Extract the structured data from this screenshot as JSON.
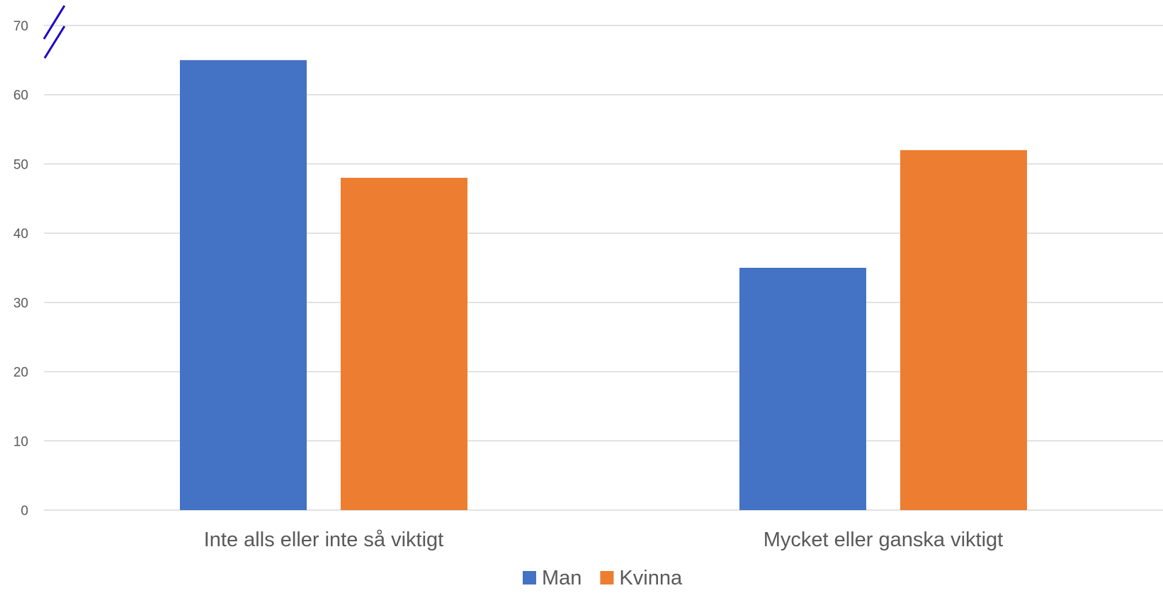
{
  "chart_data": {
    "type": "bar",
    "categories": [
      "Inte alls eller inte så viktigt",
      "Mycket eller ganska viktigt"
    ],
    "series": [
      {
        "name": "Man",
        "color": "#4472C4",
        "values": [
          65,
          35
        ]
      },
      {
        "name": "Kvinna",
        "color": "#ED7D31",
        "values": [
          48,
          52
        ]
      }
    ],
    "yticks": [
      "0",
      "10",
      "20",
      "30",
      "40",
      "50",
      "60",
      "70"
    ],
    "ylim": [
      0,
      70
    ],
    "grid": true,
    "legend_position": "bottom",
    "axis_break_marker": true,
    "axis_break_color": "#1F00C8"
  }
}
